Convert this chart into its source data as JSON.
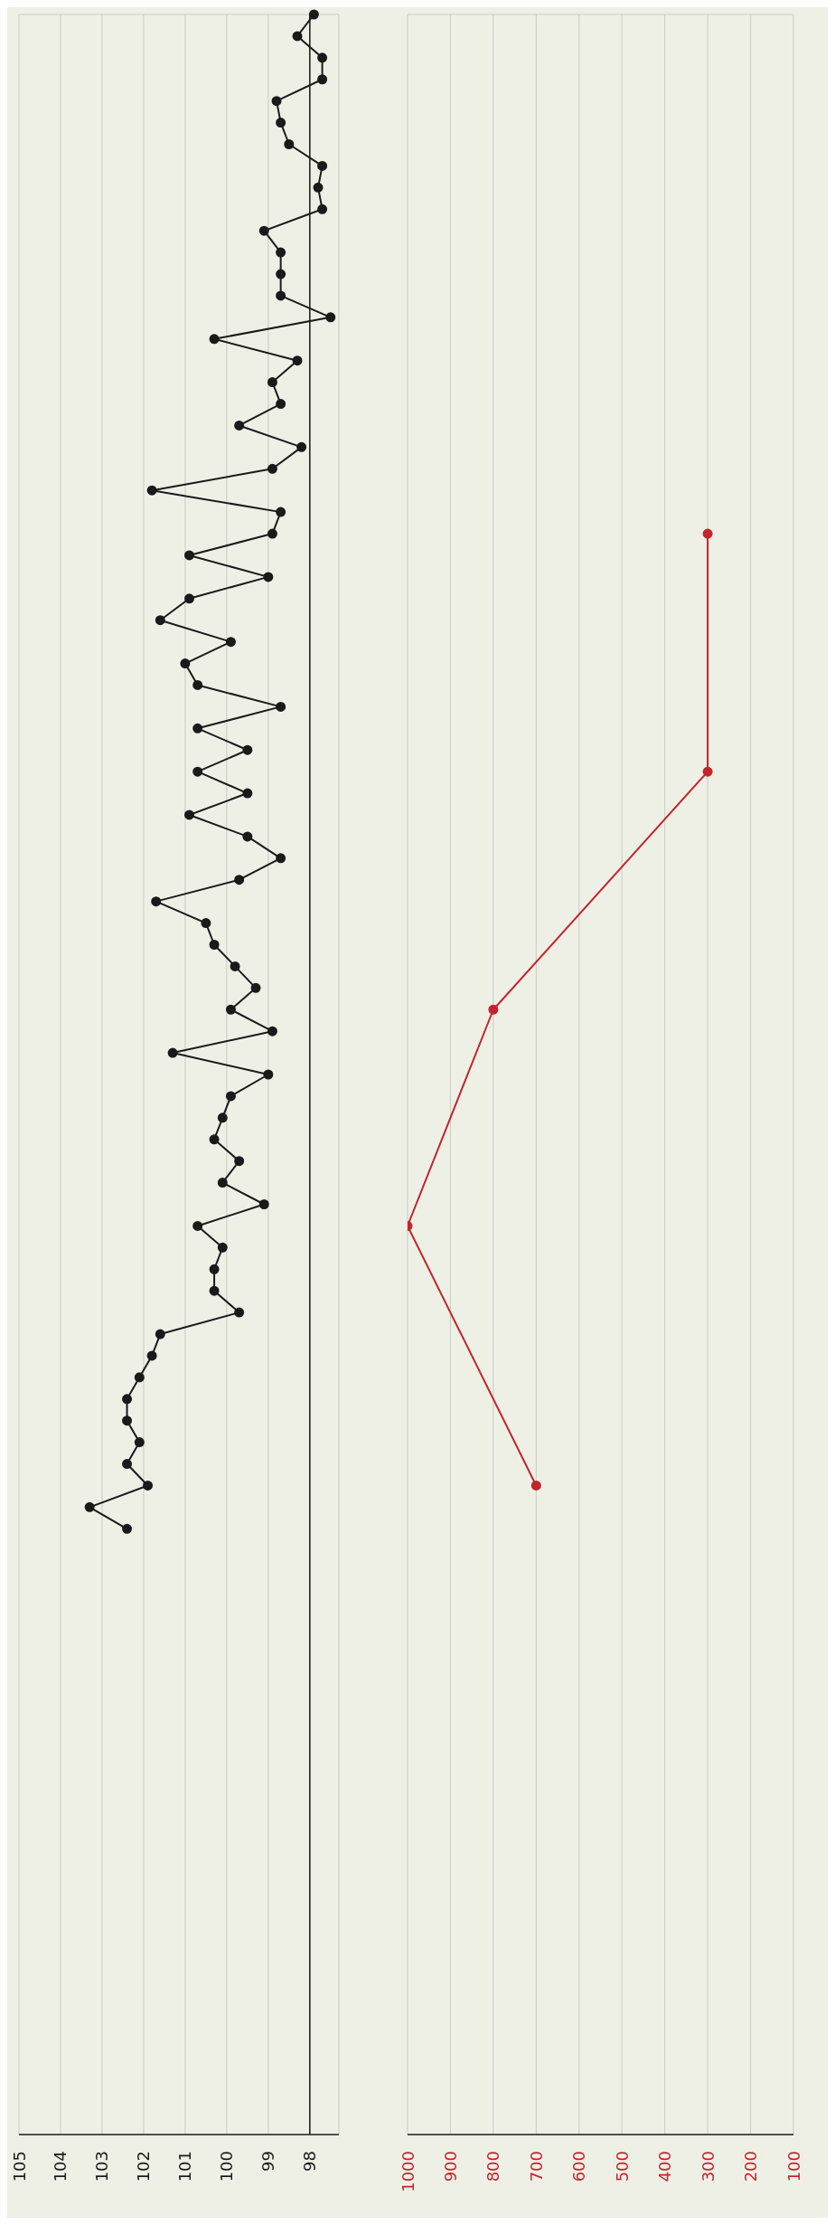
{
  "chart_data": [
    {
      "type": "line",
      "orientation": "horizontal",
      "grid": true,
      "marker": "circle",
      "categories": [
        null,
        null,
        null,
        null,
        null,
        null,
        null,
        null,
        null,
        null,
        null,
        null,
        null,
        null,
        null,
        null,
        null,
        null,
        null,
        null,
        null,
        null,
        null,
        null,
        null,
        null,
        null,
        null,
        null,
        null,
        null,
        null,
        null,
        null,
        null,
        null,
        null,
        null,
        null,
        null,
        null,
        null,
        null,
        null,
        null,
        null,
        null,
        null,
        null,
        null,
        null,
        null,
        null,
        null,
        null,
        null,
        null,
        null,
        null,
        null,
        null,
        null,
        null,
        null,
        null,
        null,
        null,
        null,
        null,
        null,
        null,
        null,
        null,
        null,
        null,
        null,
        null,
        null,
        null,
        null,
        null,
        null,
        null,
        null,
        null,
        null,
        null,
        null,
        null,
        null,
        null,
        null,
        null,
        null,
        null,
        null,
        null,
        null,
        null
      ],
      "series": [
        {
          "color": "#1a1a1a",
          "values": [
            97.9,
            98.3,
            97.7,
            97.7,
            98.8,
            98.7,
            98.5,
            97.7,
            97.8,
            97.7,
            99.1,
            98.7,
            98.7,
            98.7,
            97.5,
            100.3,
            98.3,
            98.9,
            98.7,
            99.7,
            98.2,
            98.9,
            101.8,
            98.7,
            98.9,
            100.9,
            99.0,
            100.9,
            101.6,
            99.9,
            101.0,
            100.7,
            98.7,
            100.7,
            99.5,
            100.7,
            99.5,
            100.9,
            99.5,
            98.7,
            99.7,
            101.7,
            100.5,
            100.3,
            99.8,
            99.3,
            99.9,
            98.9,
            101.3,
            99.0,
            99.9,
            100.1,
            100.3,
            99.7,
            100.1,
            99.1,
            100.7,
            100.1,
            100.3,
            100.3,
            99.7,
            101.6,
            101.8,
            102.1,
            102.4,
            102.4,
            102.1,
            102.4,
            101.9,
            103.3,
            102.4,
            null,
            null,
            null,
            null,
            null,
            null,
            null,
            null,
            null,
            null,
            null,
            null,
            null,
            null,
            null,
            null,
            null,
            null,
            null,
            null,
            null,
            null,
            null,
            null,
            null,
            null,
            null,
            null
          ]
        }
      ],
      "ref_lines": [
        {
          "axis": "x",
          "value": 98,
          "color": "#1a1a1a"
        }
      ],
      "xlim": [
        105,
        97.3
      ],
      "xticks": [
        105,
        104,
        103,
        102,
        101,
        100,
        99,
        98
      ]
    },
    {
      "type": "line",
      "orientation": "horizontal",
      "grid": true,
      "marker": "circle",
      "categories": [
        null,
        null,
        null,
        null,
        null,
        null,
        null,
        null,
        null,
        null,
        null,
        null,
        null,
        null,
        null,
        null,
        null,
        null,
        null,
        null,
        null,
        null,
        null,
        null,
        null,
        null,
        null,
        null,
        null,
        null,
        null,
        null,
        null,
        null,
        null,
        null,
        null,
        null,
        null,
        null,
        null,
        null,
        null,
        null,
        null,
        null,
        null,
        null,
        null,
        null,
        null,
        null,
        null,
        null,
        null,
        null,
        null,
        null,
        null,
        null,
        null,
        null,
        null,
        null,
        null,
        null,
        null,
        null,
        null,
        null,
        null,
        null,
        null,
        null,
        null,
        null,
        null,
        null,
        null,
        null,
        null,
        null,
        null,
        null,
        null,
        null,
        null,
        null,
        null,
        null,
        null,
        null,
        null,
        null,
        null,
        null,
        null,
        null,
        null
      ],
      "series": [
        {
          "color": "#c0262c",
          "values": [
            null,
            null,
            null,
            null,
            null,
            null,
            null,
            null,
            null,
            null,
            null,
            null,
            null,
            null,
            null,
            null,
            null,
            null,
            null,
            null,
            null,
            null,
            null,
            null,
            300,
            null,
            null,
            null,
            null,
            null,
            null,
            null,
            null,
            null,
            null,
            300,
            null,
            null,
            null,
            null,
            null,
            null,
            null,
            null,
            null,
            null,
            800,
            null,
            null,
            null,
            null,
            null,
            null,
            null,
            null,
            null,
            1000,
            null,
            null,
            null,
            null,
            null,
            null,
            null,
            null,
            null,
            null,
            null,
            700,
            null,
            null,
            null,
            null,
            null,
            null,
            null,
            null,
            null,
            null,
            null,
            null,
            null,
            null,
            null,
            null,
            null,
            null,
            null,
            null,
            null,
            null,
            null,
            null,
            null,
            null,
            null,
            null,
            null,
            null
          ]
        }
      ],
      "xlim": [
        1000,
        100
      ],
      "xticks": [
        1000,
        900,
        800,
        700,
        600,
        500,
        400,
        300,
        200,
        100
      ]
    }
  ]
}
